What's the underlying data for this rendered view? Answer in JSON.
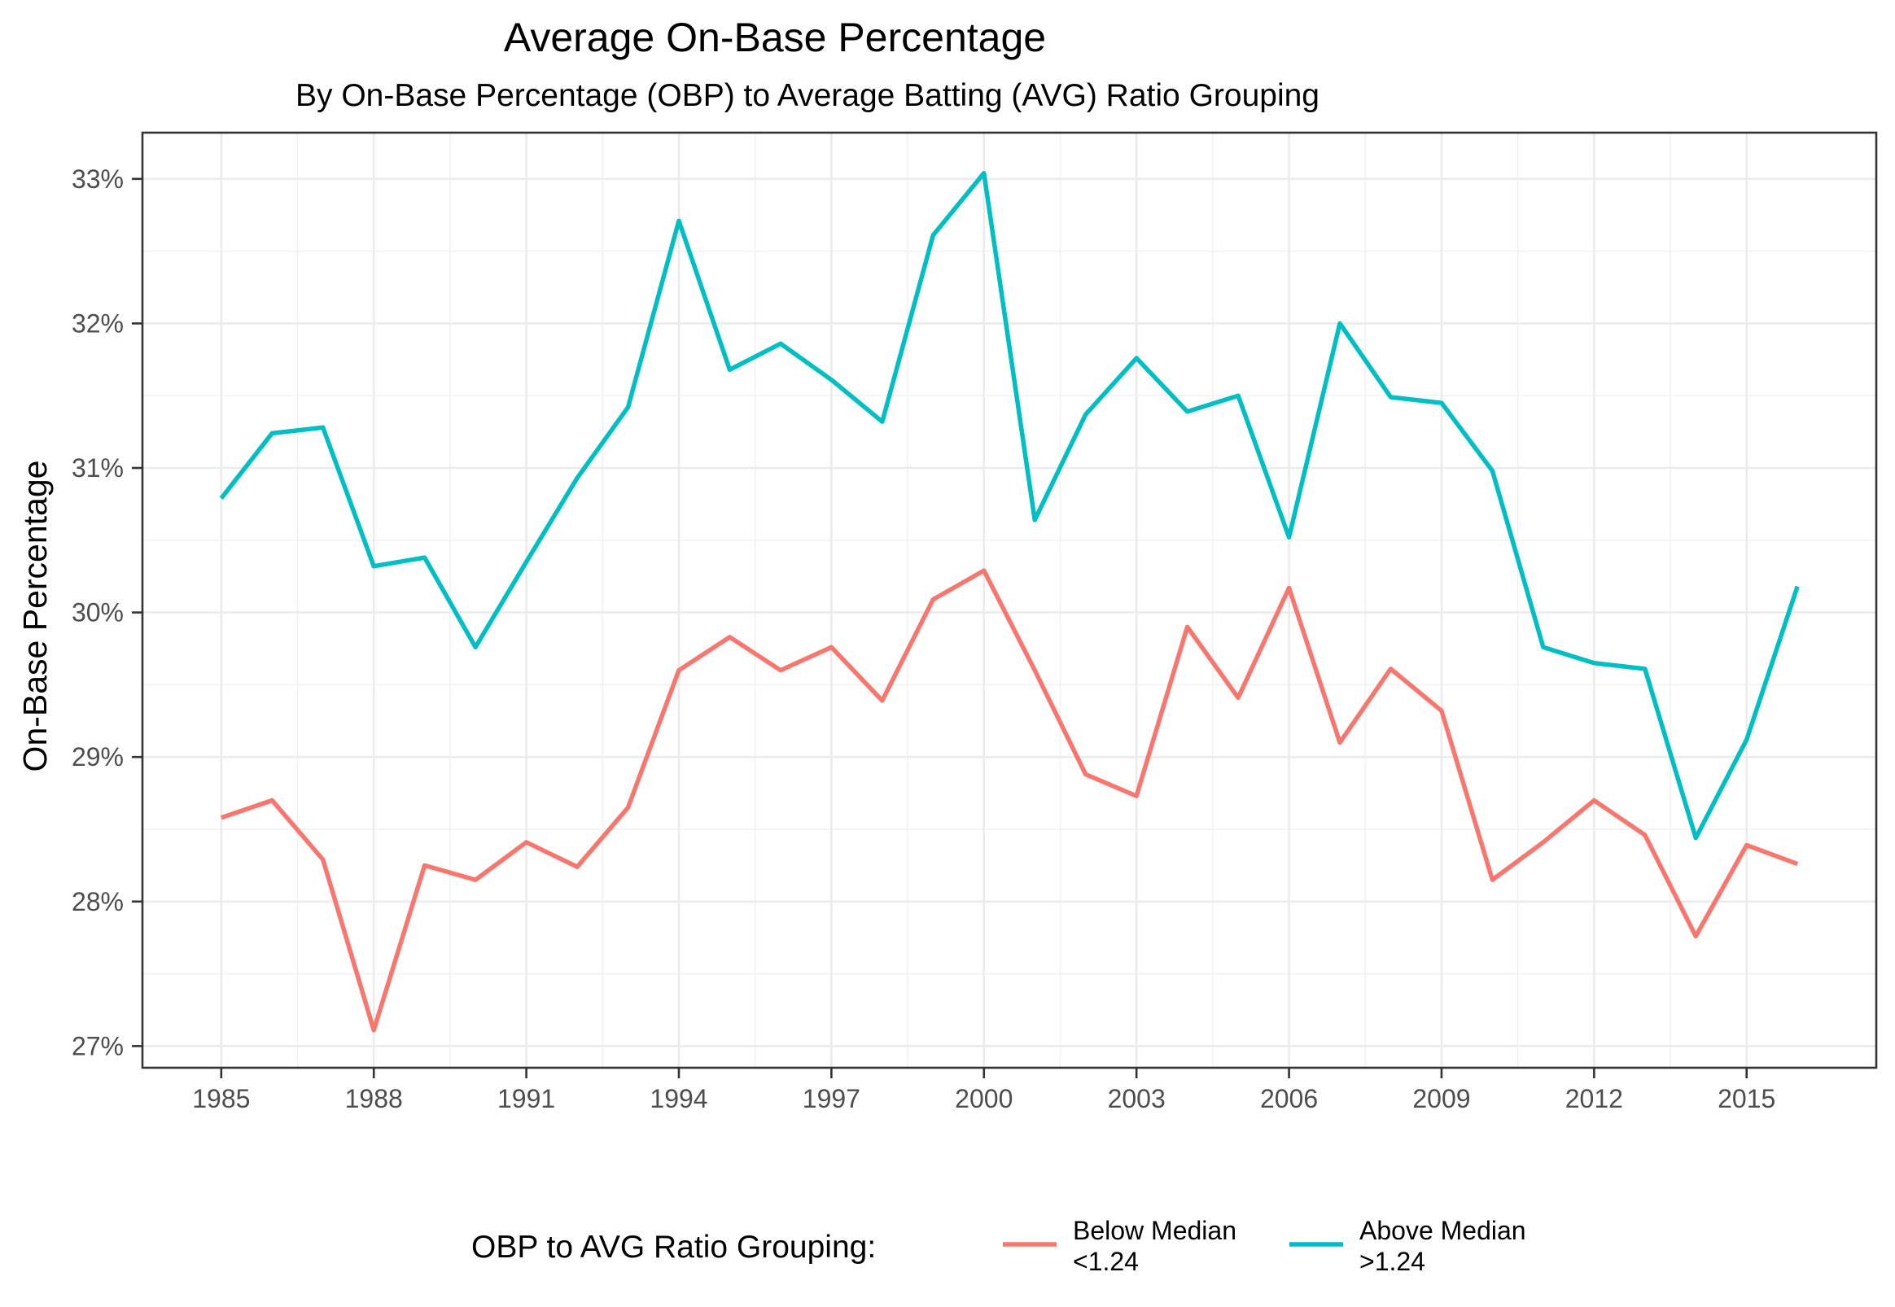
{
  "chart_data": {
    "type": "line",
    "title": "Average On-Base Percentage",
    "subtitle": "By On-Base Percentage (OBP) to Average Batting (AVG) Ratio Grouping",
    "xlabel": "",
    "ylabel": "On-Base Percentage",
    "x": [
      1985,
      1986,
      1987,
      1988,
      1989,
      1990,
      1991,
      1992,
      1993,
      1994,
      1995,
      1996,
      1997,
      1998,
      1999,
      2000,
      2001,
      2002,
      2003,
      2004,
      2005,
      2006,
      2007,
      2008,
      2009,
      2010,
      2011,
      2012,
      2013,
      2014,
      2015,
      2016
    ],
    "x_ticks": [
      1985,
      1988,
      1991,
      1994,
      1997,
      2000,
      2003,
      2006,
      2009,
      2012,
      2015
    ],
    "x_tick_labels": [
      "1985",
      "1988",
      "1991",
      "1994",
      "1997",
      "2000",
      "2003",
      "2006",
      "2009",
      "2012",
      "2015"
    ],
    "xlim": [
      1983.45,
      2017.55
    ],
    "y_ticks": [
      27,
      28,
      29,
      30,
      31,
      32,
      33
    ],
    "y_tick_labels": [
      "27%",
      "28%",
      "29%",
      "30%",
      "31%",
      "32%",
      "33%"
    ],
    "ylim": [
      26.85,
      33.32
    ],
    "grid": true,
    "legend": {
      "position": "bottom",
      "title": "OBP to AVG Ratio Grouping:"
    },
    "series": [
      {
        "name": "Below Median",
        "label_line1": "Below Median",
        "label_line2": "<1.24",
        "color": "#F8766D",
        "values": [
          28.58,
          28.7,
          28.29,
          27.11,
          28.25,
          28.15,
          28.41,
          28.24,
          28.65,
          29.6,
          29.83,
          29.6,
          29.76,
          29.39,
          30.09,
          30.29,
          29.6,
          28.88,
          28.73,
          29.9,
          29.41,
          30.17,
          29.1,
          29.61,
          29.32,
          28.15,
          28.41,
          28.7,
          28.46,
          27.76,
          28.39,
          28.26
        ]
      },
      {
        "name": "Above Median",
        "label_line1": "Above Median",
        "label_line2": ">1.24",
        "color": "#00BFC4",
        "values": [
          30.79,
          31.24,
          31.28,
          30.32,
          30.38,
          29.76,
          30.35,
          30.93,
          31.42,
          32.71,
          31.68,
          31.86,
          31.61,
          31.32,
          32.61,
          33.04,
          30.64,
          31.37,
          31.76,
          31.39,
          31.5,
          30.52,
          32.0,
          31.49,
          31.45,
          30.98,
          29.76,
          29.65,
          29.61,
          28.44,
          29.12,
          30.18
        ]
      }
    ]
  }
}
